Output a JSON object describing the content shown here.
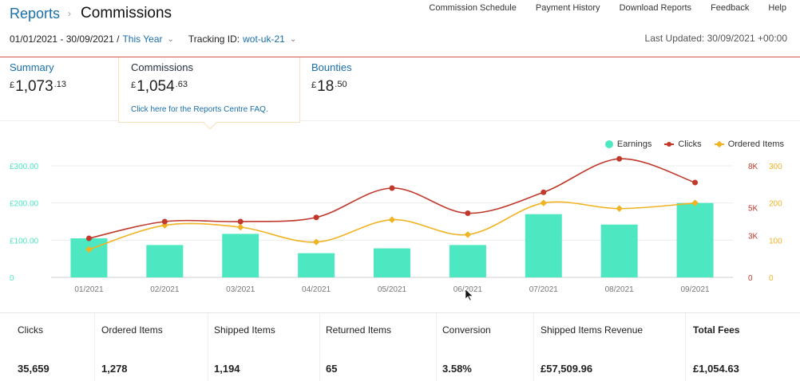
{
  "header": {
    "breadcrumb_link": "Reports",
    "breadcrumb_current": "Commissions",
    "nav": [
      "Commission Schedule",
      "Payment History",
      "Download Reports",
      "Feedback",
      "Help"
    ],
    "date_range": "01/01/2021 - 30/09/2021 /",
    "date_preset": "This Year",
    "tracking_label": "Tracking ID:",
    "tracking_id": "wot-uk-21",
    "last_updated": "Last Updated: 30/09/2021 +00:00"
  },
  "tiles": {
    "summary": {
      "title": "Summary",
      "currency": "£",
      "main": "1,073",
      "decimal": ".13"
    },
    "commissions": {
      "title": "Commissions",
      "currency": "£",
      "main": "1,054",
      "decimal": ".63",
      "faq_link": "Click here for the Reports Centre FAQ."
    },
    "bounties": {
      "title": "Bounties",
      "currency": "£",
      "main": "18",
      "decimal": ".50"
    }
  },
  "chart_data": {
    "type": "bar",
    "categories": [
      "01/2021",
      "02/2021",
      "03/2021",
      "04/2021",
      "05/2021",
      "06/2021",
      "07/2021",
      "08/2021",
      "09/2021"
    ],
    "series": [
      {
        "name": "Earnings",
        "kind": "bar",
        "axis": "left",
        "color": "#4de8c2",
        "values": [
          105,
          87,
          117,
          65,
          78,
          87,
          170,
          142,
          200
        ]
      },
      {
        "name": "Clicks",
        "kind": "line",
        "axis": "right-clicks",
        "color": "#c0392b",
        "values": [
          2800,
          4000,
          4000,
          4300,
          6400,
          4600,
          6100,
          8500,
          6800
        ]
      },
      {
        "name": "Ordered Items",
        "kind": "line",
        "axis": "right-items",
        "color": "#f0b323",
        "values": [
          75,
          140,
          135,
          95,
          155,
          115,
          200,
          185,
          200
        ]
      }
    ],
    "left_axis": {
      "ticks": [
        "0",
        "£100.00",
        "£200.00",
        "£300.00"
      ],
      "ylim": [
        0,
        300
      ],
      "color": "#4de8c2"
    },
    "right_axis_clicks": {
      "ticks": [
        "0",
        "3K",
        "5K",
        "8K"
      ],
      "tick_values": [
        0,
        3000,
        5000,
        8000
      ],
      "ylim": [
        0,
        8000
      ],
      "color": "#c0392b"
    },
    "right_axis_items": {
      "ticks": [
        "0",
        "100",
        "200",
        "300"
      ],
      "ylim": [
        0,
        300
      ],
      "color": "#f0b323"
    },
    "grid": true,
    "legend": "top-right"
  },
  "stats": [
    {
      "label": "Clicks",
      "value": "35,659"
    },
    {
      "label": "Ordered Items",
      "value": "1,278"
    },
    {
      "label": "Shipped Items",
      "value": "1,194"
    },
    {
      "label": "Returned Items",
      "value": "65"
    },
    {
      "label": "Conversion",
      "value": "3.58%"
    },
    {
      "label": "Shipped Items Revenue",
      "value": "£57,509.96"
    },
    {
      "label": "Total Fees",
      "value": "£1,054.63"
    }
  ]
}
